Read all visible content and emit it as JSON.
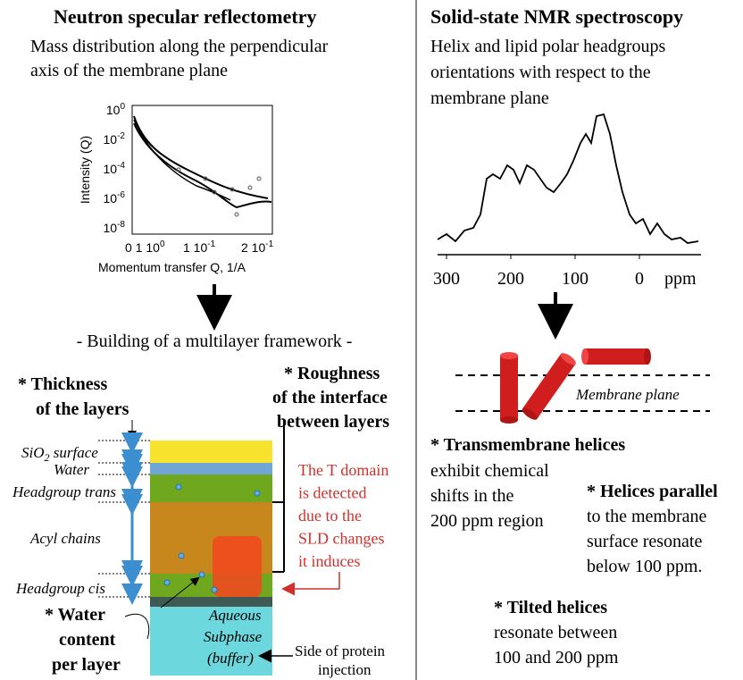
{
  "left": {
    "title": "Neutron specular reflectometry",
    "subtitle": [
      "Mass distribution along the perpendicular",
      "axis of the membrane plane"
    ],
    "plot": {
      "ylabel": "Intensity (Q)",
      "yticks": [
        {
          "base": "10",
          "exp": "0"
        },
        {
          "base": "10",
          "exp": "-2"
        },
        {
          "base": "10",
          "exp": "-4"
        },
        {
          "base": "10",
          "exp": "-6"
        },
        {
          "base": "10",
          "exp": "-8"
        }
      ],
      "xticks": [
        {
          "base": "0 1 10",
          "exp": "0"
        },
        {
          "base": "1 10",
          "exp": "-1"
        },
        {
          "base": "2 10",
          "exp": "-1"
        }
      ],
      "xlabel": "Momentum transfer Q, 1/A"
    },
    "framework_title": "- Building of a multilayer framework -",
    "thickness": [
      "* Thickness",
      "of the layers"
    ],
    "roughness": [
      "* Roughness",
      "of the interface",
      "between layers"
    ],
    "domain_note": [
      "The T domain",
      "is detected",
      "due to the",
      "SLD changes",
      "it induces"
    ],
    "layers": {
      "sio2": {
        "main": "SiO",
        "sub": "2",
        "rest": " surface"
      },
      "water": "Water",
      "headgroup_trans": "Headgroup trans",
      "acyl": "Acyl chains",
      "headgroup_cis": "Headgroup cis"
    },
    "water_content": [
      "* Water",
      "content",
      "per layer"
    ],
    "subphase": [
      "Aqueous",
      "Subphase",
      "(buffer)"
    ],
    "injection": [
      "Side of protein",
      "injection"
    ]
  },
  "right": {
    "title": "Solid-state NMR spectroscopy",
    "subtitle": [
      "Helix and lipid polar headgroups",
      "orientations with respect to the",
      "membrane plane"
    ],
    "spectrum": {
      "xticks": [
        "300",
        "200",
        "100",
        "0"
      ],
      "unit": "ppm"
    },
    "membrane_label": "Membrane plane",
    "transmembrane": [
      "* Transmembrane helices",
      "exhibit chemical",
      "shifts in the",
      "200 ppm region"
    ],
    "parallel": [
      "* Helices parallel",
      "to the membrane",
      "surface resonate",
      "below 100 ppm."
    ],
    "tilted": [
      "* Tilted helices",
      "resonate between",
      "100 and 200 ppm"
    ]
  }
}
